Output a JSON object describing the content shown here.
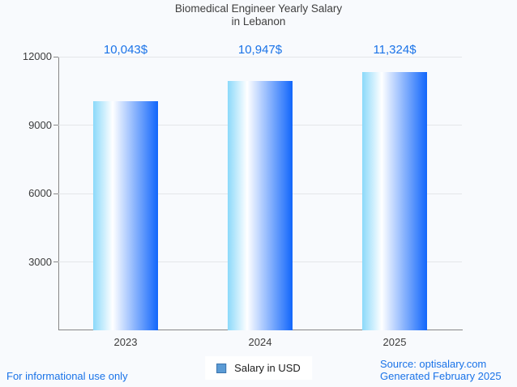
{
  "page": {
    "background": "#f8fafd",
    "footer_left": "For informational use only",
    "source_line1": "Source: optisalary.com",
    "source_line2": "Generated February 2025"
  },
  "legend": {
    "label": "Salary in USD",
    "swatch_color": "#5b9bd5",
    "swatch_border": "#3a73ad"
  },
  "colors": {
    "accent_blue": "#1a73e8",
    "bar_gradient": [
      "#8bd9fa",
      "#ffffff",
      "#1166fb"
    ],
    "bar_gradient_white_stop_pct": 30,
    "axis": "#878787",
    "gridline": "#e4e6e9",
    "text_dark": "#3c3c3c"
  },
  "chart_data": {
    "type": "bar",
    "title": "Biomedical Engineer Yearly Salary",
    "subtitle": "in Lebanon",
    "categories": [
      "2023",
      "2024",
      "2025"
    ],
    "series": [
      {
        "name": "Salary in USD",
        "values": [
          10043,
          10947,
          11324
        ]
      }
    ],
    "value_labels": [
      "10,043$",
      "10,947$",
      "11,324$"
    ],
    "xlabel": "",
    "ylabel": "",
    "ylim": [
      0,
      12000
    ],
    "yticks": [
      3000,
      6000,
      9000,
      12000
    ],
    "grid": true,
    "legend_position": "bottom"
  }
}
